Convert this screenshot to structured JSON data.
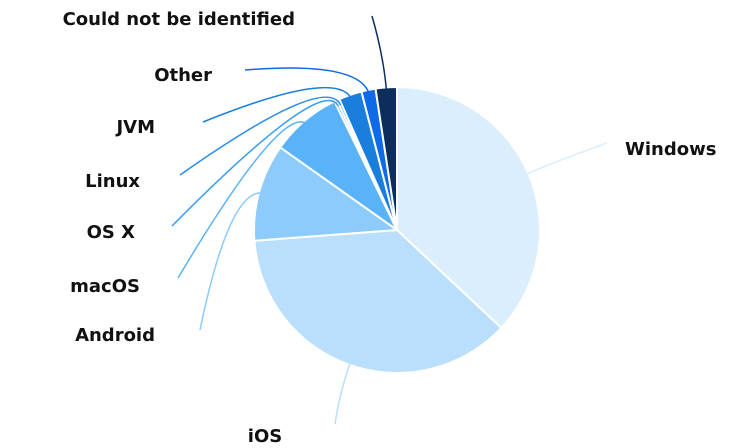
{
  "chart_data": {
    "type": "pie",
    "categories": [
      "Windows",
      "iOS",
      "Android",
      "macOS",
      "OS X",
      "Linux",
      "JVM",
      "Other",
      "Could not be identified"
    ],
    "values": [
      37,
      36.8,
      11,
      8,
      0.3,
      0.3,
      2.6,
      1.6,
      2.4
    ],
    "colors": [
      "#dbeefd",
      "#b9dffc",
      "#8ccbfb",
      "#5ab3f8",
      "#3a9cf2",
      "#2b8de8",
      "#1a7fdc",
      "#0f6ae8",
      "#0d2e5c"
    ]
  }
}
